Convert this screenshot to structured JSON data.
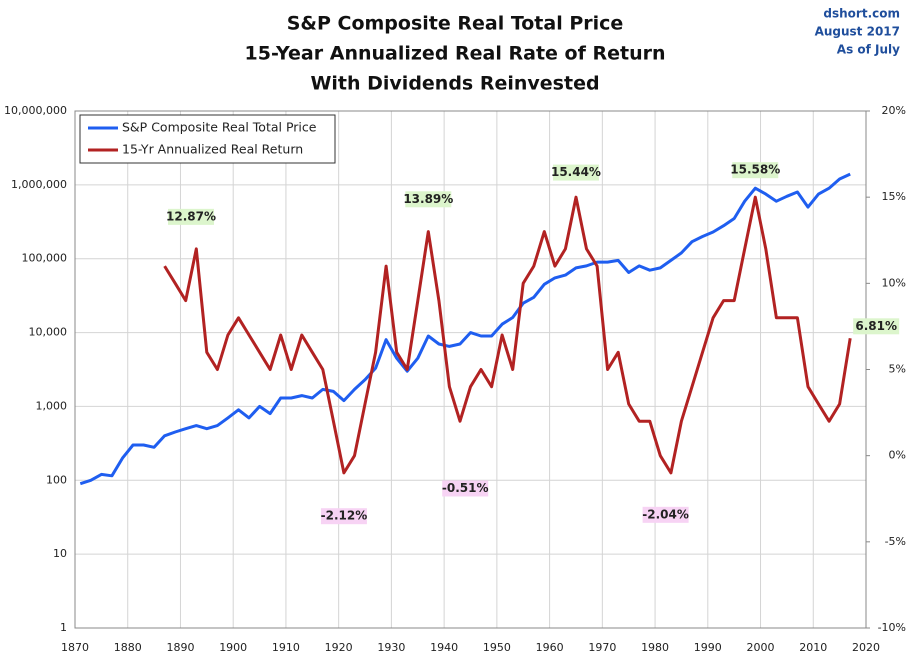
{
  "chart_data": {
    "type": "line",
    "title": [
      "S&P Composite Real Total Price",
      "15-Year Annualized Real Rate of Return",
      "With Dividends Reinvested"
    ],
    "notes": [
      "dshort.com",
      "August 2017",
      "As of July"
    ],
    "ylog": true,
    "grid": true,
    "legend": "top-left",
    "xlim": [
      1870,
      2020
    ],
    "xticks": [
      1870,
      1880,
      1890,
      1900,
      1910,
      1920,
      1930,
      1940,
      1950,
      1960,
      1970,
      1980,
      1990,
      2000,
      2010,
      2020
    ],
    "ylim": [
      1,
      10000000
    ],
    "yticks": [
      1,
      10,
      100,
      {
        "value": 1000,
        "label": "1,000"
      },
      {
        "value": 10000,
        "label": "10,000"
      },
      {
        "value": 100000,
        "label": "100,000"
      },
      {
        "value": 1000000,
        "label": "1,000,000"
      },
      {
        "value": 10000000,
        "label": "10,000,000"
      }
    ],
    "y2lim": [
      -10,
      20
    ],
    "y2ticks": [
      {
        "value": -10,
        "label": "-10%"
      },
      {
        "value": -5,
        "label": "-5%"
      },
      {
        "value": 0,
        "label": "0%"
      },
      {
        "value": 5,
        "label": "5%"
      },
      {
        "value": 10,
        "label": "10%"
      },
      {
        "value": 15,
        "label": "15%"
      },
      {
        "value": 20,
        "label": "20%"
      }
    ],
    "x": [
      1871,
      1873,
      1875,
      1877,
      1879,
      1881,
      1883,
      1885,
      1887,
      1889,
      1891,
      1893,
      1895,
      1897,
      1899,
      1901,
      1903,
      1905,
      1907,
      1909,
      1911,
      1913,
      1915,
      1917,
      1919,
      1921,
      1923,
      1925,
      1927,
      1929,
      1931,
      1933,
      1935,
      1937,
      1939,
      1941,
      1943,
      1945,
      1947,
      1949,
      1951,
      1953,
      1955,
      1957,
      1959,
      1961,
      1963,
      1965,
      1967,
      1969,
      1971,
      1973,
      1975,
      1977,
      1979,
      1981,
      1983,
      1985,
      1987,
      1989,
      1991,
      1993,
      1995,
      1997,
      1999,
      2001,
      2003,
      2005,
      2007,
      2009,
      2011,
      2013,
      2015,
      2017
    ],
    "series": [
      {
        "name": "S&P Composite Real Total Price",
        "color": "#1f5ef0",
        "values": [
          90,
          100,
          120,
          115,
          200,
          300,
          300,
          280,
          400,
          450,
          500,
          550,
          500,
          550,
          700,
          900,
          700,
          1000,
          800,
          1300,
          1300,
          1400,
          1300,
          1700,
          1600,
          1200,
          1700,
          2300,
          3300,
          8000,
          4500,
          3000,
          4500,
          9000,
          7000,
          6500,
          7000,
          10000,
          9000,
          9000,
          13000,
          16000,
          25000,
          30000,
          45000,
          55000,
          60000,
          75000,
          80000,
          90000,
          90000,
          95000,
          65000,
          80000,
          70000,
          75000,
          95000,
          120000,
          170000,
          200000,
          230000,
          280000,
          350000,
          600000,
          900000,
          750000,
          600000,
          700000,
          800000,
          500000,
          750000,
          900000,
          1200000,
          1400000
        ]
      },
      {
        "name": "15-Yr Annualized Real Return",
        "color": "#b22222",
        "axis": "y2",
        "values": [
          null,
          null,
          null,
          null,
          null,
          null,
          null,
          null,
          11,
          10,
          9,
          12,
          6,
          5,
          7,
          8,
          7,
          6,
          5,
          7,
          5,
          7,
          6,
          5,
          2,
          -1,
          0,
          3,
          6,
          11,
          6,
          5,
          9,
          13,
          9,
          4,
          2,
          4,
          5,
          4,
          7,
          5,
          10,
          11,
          13,
          11,
          12,
          15,
          12,
          11,
          5,
          6,
          3,
          2,
          2,
          0,
          -1,
          2,
          4,
          6,
          8,
          9,
          9,
          12,
          15,
          12,
          8,
          8,
          8,
          4,
          3,
          2,
          3,
          6.81
        ]
      }
    ],
    "annotations": [
      {
        "text": "12.87%",
        "x": 1892,
        "y": 12.87
      },
      {
        "text": "-2.12%",
        "x": 1921,
        "y": -2.12
      },
      {
        "text": "13.89%",
        "x": 1937,
        "y": 13.89
      },
      {
        "text": "-0.51%",
        "x": 1944,
        "y": -0.51
      },
      {
        "text": "15.44%",
        "x": 1965,
        "y": 15.44
      },
      {
        "text": "-2.04%",
        "x": 1982,
        "y": -2.04
      },
      {
        "text": "15.58%",
        "x": 1999,
        "y": 15.58
      },
      {
        "text": "6.81%",
        "x": 2017,
        "y": 6.81
      }
    ]
  }
}
